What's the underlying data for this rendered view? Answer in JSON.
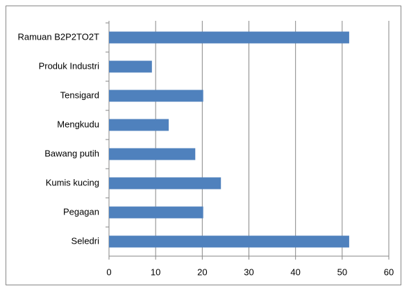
{
  "chart_data": {
    "type": "bar",
    "orientation": "horizontal",
    "categories": [
      "Ramuan B2P2TO2T",
      "Produk Industri",
      "Tensigard",
      "Mengkudu",
      "Bawang putih",
      "Kumis kucing",
      "Pegagan",
      "Seledri"
    ],
    "values": [
      51.5,
      9.2,
      20.2,
      12.8,
      18.5,
      24.0,
      20.2,
      51.5
    ],
    "color": "#4f81bd",
    "xlim": [
      0,
      60
    ],
    "xticks": [
      0,
      10,
      20,
      30,
      40,
      50,
      60
    ],
    "grid": true
  }
}
